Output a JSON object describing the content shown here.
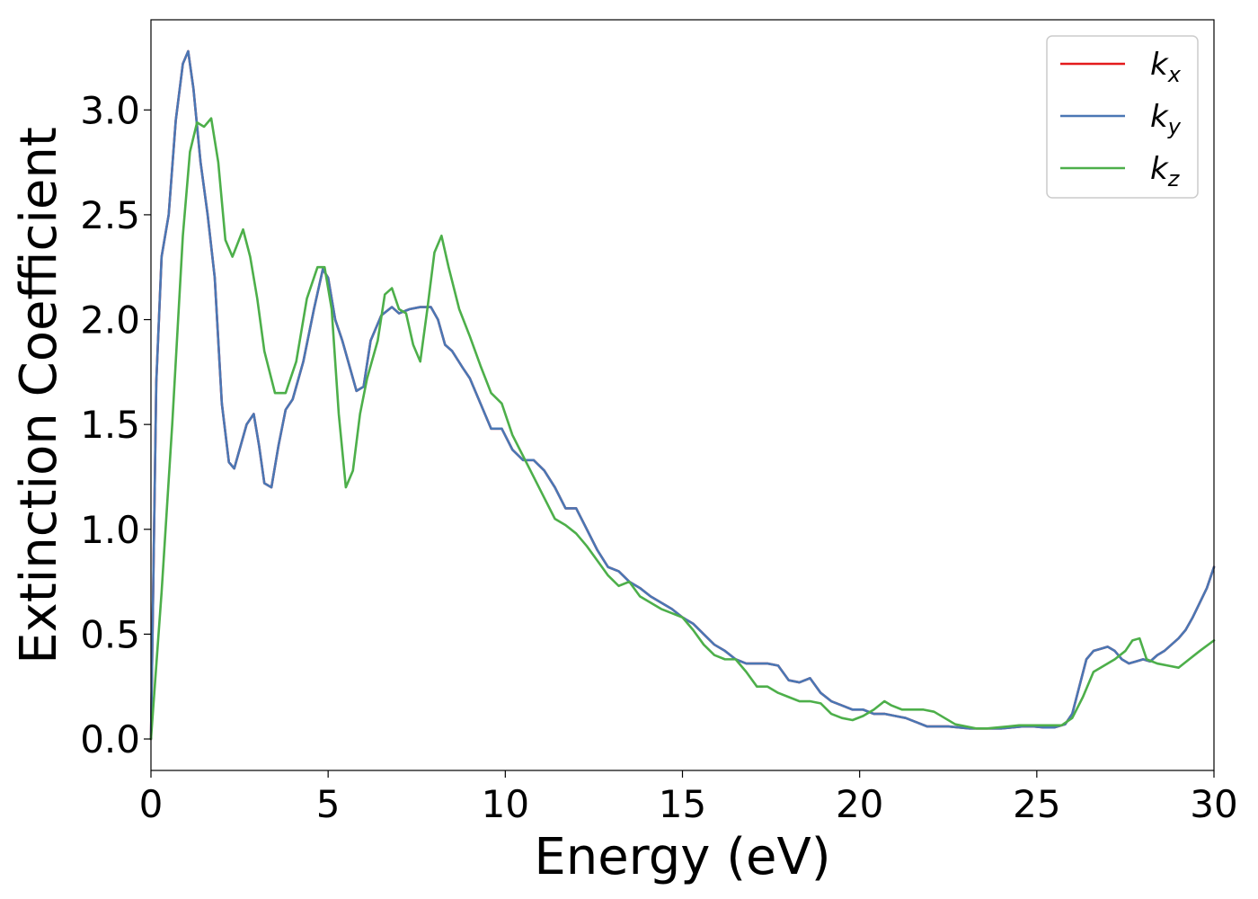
{
  "chart_data": {
    "type": "line",
    "xlabel": "Energy (eV)",
    "ylabel": "Extinction Coefficient",
    "xlim": [
      0,
      30
    ],
    "ylim": [
      -0.15,
      3.43
    ],
    "xticks": [
      0,
      5,
      10,
      15,
      20,
      25,
      30
    ],
    "xtick_labels": [
      "0",
      "5",
      "10",
      "15",
      "20",
      "25",
      "30"
    ],
    "yticks": [
      0.0,
      0.5,
      1.0,
      1.5,
      2.0,
      2.5,
      3.0
    ],
    "ytick_labels": [
      "0.0",
      "0.5",
      "1.0",
      "1.5",
      "2.0",
      "2.5",
      "3.0"
    ],
    "grid": false,
    "legend_position": "top-right",
    "series": [
      {
        "name": "k",
        "subscript": "x",
        "color": "#e41a1c",
        "x": [
          0,
          0.15,
          0.3,
          0.5,
          0.7,
          0.9,
          1.05,
          1.2,
          1.4,
          1.6,
          1.8,
          2.0,
          2.2,
          2.35,
          2.5,
          2.7,
          2.9,
          3.05,
          3.2,
          3.4,
          3.6,
          3.8,
          4.0,
          4.3,
          4.6,
          4.85,
          5.0,
          5.2,
          5.4,
          5.6,
          5.8,
          6.0,
          6.2,
          6.5,
          6.8,
          7.0,
          7.3,
          7.6,
          7.9,
          8.1,
          8.3,
          8.5,
          8.8,
          9.0,
          9.3,
          9.6,
          9.9,
          10.2,
          10.5,
          10.8,
          11.1,
          11.4,
          11.7,
          12.0,
          12.3,
          12.6,
          12.9,
          13.2,
          13.5,
          13.8,
          14.1,
          14.4,
          14.7,
          15.0,
          15.3,
          15.6,
          15.9,
          16.2,
          16.5,
          16.8,
          17.1,
          17.4,
          17.7,
          18.0,
          18.3,
          18.6,
          18.9,
          19.2,
          19.5,
          19.8,
          20.1,
          20.4,
          20.7,
          21.0,
          21.3,
          21.6,
          21.9,
          22.2,
          22.5,
          22.8,
          23.1,
          23.4,
          23.7,
          24.0,
          24.3,
          24.6,
          24.9,
          25.2,
          25.5,
          25.8,
          26.0,
          26.2,
          26.4,
          26.6,
          26.8,
          27.0,
          27.2,
          27.4,
          27.6,
          27.8,
          28.0,
          28.2,
          28.4,
          28.6,
          28.8,
          29.0,
          29.2,
          29.4,
          29.6,
          29.8,
          30.0
        ],
        "y": [
          0.0,
          1.7,
          2.3,
          2.5,
          2.95,
          3.22,
          3.28,
          3.1,
          2.75,
          2.5,
          2.2,
          1.6,
          1.32,
          1.29,
          1.38,
          1.5,
          1.55,
          1.4,
          1.22,
          1.2,
          1.4,
          1.57,
          1.62,
          1.8,
          2.05,
          2.24,
          2.2,
          2.0,
          1.9,
          1.78,
          1.66,
          1.68,
          1.9,
          2.02,
          2.06,
          2.03,
          2.05,
          2.06,
          2.06,
          2.0,
          1.88,
          1.85,
          1.77,
          1.72,
          1.6,
          1.48,
          1.48,
          1.38,
          1.33,
          1.33,
          1.28,
          1.2,
          1.1,
          1.1,
          1.0,
          0.9,
          0.82,
          0.8,
          0.75,
          0.72,
          0.68,
          0.65,
          0.62,
          0.58,
          0.55,
          0.5,
          0.45,
          0.42,
          0.38,
          0.36,
          0.36,
          0.36,
          0.35,
          0.28,
          0.27,
          0.29,
          0.22,
          0.18,
          0.16,
          0.14,
          0.14,
          0.12,
          0.12,
          0.11,
          0.1,
          0.08,
          0.06,
          0.06,
          0.06,
          0.055,
          0.05,
          0.05,
          0.05,
          0.05,
          0.055,
          0.06,
          0.06,
          0.055,
          0.055,
          0.07,
          0.12,
          0.25,
          0.38,
          0.42,
          0.43,
          0.44,
          0.42,
          0.38,
          0.36,
          0.37,
          0.38,
          0.37,
          0.4,
          0.42,
          0.45,
          0.48,
          0.52,
          0.58,
          0.65,
          0.72,
          0.82
        ]
      },
      {
        "name": "k",
        "subscript": "y",
        "color": "#4a77b4",
        "x": [
          0,
          0.15,
          0.3,
          0.5,
          0.7,
          0.9,
          1.05,
          1.2,
          1.4,
          1.6,
          1.8,
          2.0,
          2.2,
          2.35,
          2.5,
          2.7,
          2.9,
          3.05,
          3.2,
          3.4,
          3.6,
          3.8,
          4.0,
          4.3,
          4.6,
          4.85,
          5.0,
          5.2,
          5.4,
          5.6,
          5.8,
          6.0,
          6.2,
          6.5,
          6.8,
          7.0,
          7.3,
          7.6,
          7.9,
          8.1,
          8.3,
          8.5,
          8.8,
          9.0,
          9.3,
          9.6,
          9.9,
          10.2,
          10.5,
          10.8,
          11.1,
          11.4,
          11.7,
          12.0,
          12.3,
          12.6,
          12.9,
          13.2,
          13.5,
          13.8,
          14.1,
          14.4,
          14.7,
          15.0,
          15.3,
          15.6,
          15.9,
          16.2,
          16.5,
          16.8,
          17.1,
          17.4,
          17.7,
          18.0,
          18.3,
          18.6,
          18.9,
          19.2,
          19.5,
          19.8,
          20.1,
          20.4,
          20.7,
          21.0,
          21.3,
          21.6,
          21.9,
          22.2,
          22.5,
          22.8,
          23.1,
          23.4,
          23.7,
          24.0,
          24.3,
          24.6,
          24.9,
          25.2,
          25.5,
          25.8,
          26.0,
          26.2,
          26.4,
          26.6,
          26.8,
          27.0,
          27.2,
          27.4,
          27.6,
          27.8,
          28.0,
          28.2,
          28.4,
          28.6,
          28.8,
          29.0,
          29.2,
          29.4,
          29.6,
          29.8,
          30.0
        ],
        "y": [
          0.0,
          1.7,
          2.3,
          2.5,
          2.95,
          3.22,
          3.28,
          3.1,
          2.75,
          2.5,
          2.2,
          1.6,
          1.32,
          1.29,
          1.38,
          1.5,
          1.55,
          1.4,
          1.22,
          1.2,
          1.4,
          1.57,
          1.62,
          1.8,
          2.05,
          2.24,
          2.2,
          2.0,
          1.9,
          1.78,
          1.66,
          1.68,
          1.9,
          2.02,
          2.06,
          2.03,
          2.05,
          2.06,
          2.06,
          2.0,
          1.88,
          1.85,
          1.77,
          1.72,
          1.6,
          1.48,
          1.48,
          1.38,
          1.33,
          1.33,
          1.28,
          1.2,
          1.1,
          1.1,
          1.0,
          0.9,
          0.82,
          0.8,
          0.75,
          0.72,
          0.68,
          0.65,
          0.62,
          0.58,
          0.55,
          0.5,
          0.45,
          0.42,
          0.38,
          0.36,
          0.36,
          0.36,
          0.35,
          0.28,
          0.27,
          0.29,
          0.22,
          0.18,
          0.16,
          0.14,
          0.14,
          0.12,
          0.12,
          0.11,
          0.1,
          0.08,
          0.06,
          0.06,
          0.06,
          0.055,
          0.05,
          0.05,
          0.05,
          0.05,
          0.055,
          0.06,
          0.06,
          0.055,
          0.055,
          0.07,
          0.12,
          0.25,
          0.38,
          0.42,
          0.43,
          0.44,
          0.42,
          0.38,
          0.36,
          0.37,
          0.38,
          0.37,
          0.4,
          0.42,
          0.45,
          0.48,
          0.52,
          0.58,
          0.65,
          0.72,
          0.82
        ]
      },
      {
        "name": "k",
        "subscript": "z",
        "color": "#4daf4a",
        "x": [
          0,
          0.3,
          0.6,
          0.9,
          1.1,
          1.3,
          1.5,
          1.7,
          1.9,
          2.1,
          2.3,
          2.6,
          2.8,
          3.0,
          3.2,
          3.5,
          3.8,
          4.1,
          4.4,
          4.7,
          4.9,
          5.1,
          5.3,
          5.5,
          5.7,
          5.9,
          6.1,
          6.4,
          6.6,
          6.8,
          7.0,
          7.2,
          7.4,
          7.6,
          7.8,
          8.0,
          8.2,
          8.4,
          8.7,
          9.0,
          9.3,
          9.6,
          9.9,
          10.2,
          10.5,
          10.8,
          11.1,
          11.4,
          11.7,
          12.0,
          12.3,
          12.6,
          12.9,
          13.2,
          13.5,
          13.8,
          14.1,
          14.4,
          14.7,
          15.0,
          15.3,
          15.6,
          15.9,
          16.2,
          16.5,
          16.8,
          17.1,
          17.4,
          17.7,
          18.0,
          18.3,
          18.6,
          18.9,
          19.2,
          19.5,
          19.8,
          20.1,
          20.4,
          20.7,
          20.9,
          21.2,
          21.5,
          21.8,
          22.1,
          22.4,
          22.7,
          23.0,
          23.3,
          23.6,
          23.9,
          24.2,
          24.5,
          24.8,
          25.1,
          25.4,
          25.7,
          26.0,
          26.3,
          26.6,
          26.9,
          27.2,
          27.5,
          27.7,
          27.9,
          28.1,
          28.4,
          28.7,
          29.0,
          29.3,
          29.6,
          30.0
        ],
        "y": [
          0.0,
          0.7,
          1.5,
          2.4,
          2.8,
          2.94,
          2.92,
          2.96,
          2.75,
          2.38,
          2.3,
          2.43,
          2.3,
          2.1,
          1.85,
          1.65,
          1.65,
          1.8,
          2.1,
          2.25,
          2.25,
          2.05,
          1.55,
          1.2,
          1.28,
          1.55,
          1.72,
          1.9,
          2.12,
          2.15,
          2.05,
          2.03,
          1.88,
          1.8,
          2.05,
          2.32,
          2.4,
          2.25,
          2.05,
          1.92,
          1.78,
          1.65,
          1.6,
          1.45,
          1.35,
          1.25,
          1.15,
          1.05,
          1.02,
          0.98,
          0.92,
          0.85,
          0.78,
          0.73,
          0.75,
          0.68,
          0.65,
          0.62,
          0.6,
          0.58,
          0.52,
          0.45,
          0.4,
          0.38,
          0.38,
          0.32,
          0.25,
          0.25,
          0.22,
          0.2,
          0.18,
          0.18,
          0.17,
          0.12,
          0.1,
          0.09,
          0.11,
          0.14,
          0.18,
          0.16,
          0.14,
          0.14,
          0.14,
          0.13,
          0.1,
          0.07,
          0.06,
          0.05,
          0.05,
          0.055,
          0.06,
          0.065,
          0.065,
          0.065,
          0.065,
          0.065,
          0.1,
          0.2,
          0.32,
          0.35,
          0.38,
          0.42,
          0.47,
          0.48,
          0.38,
          0.36,
          0.35,
          0.34,
          0.38,
          0.42,
          0.47
        ]
      }
    ]
  }
}
